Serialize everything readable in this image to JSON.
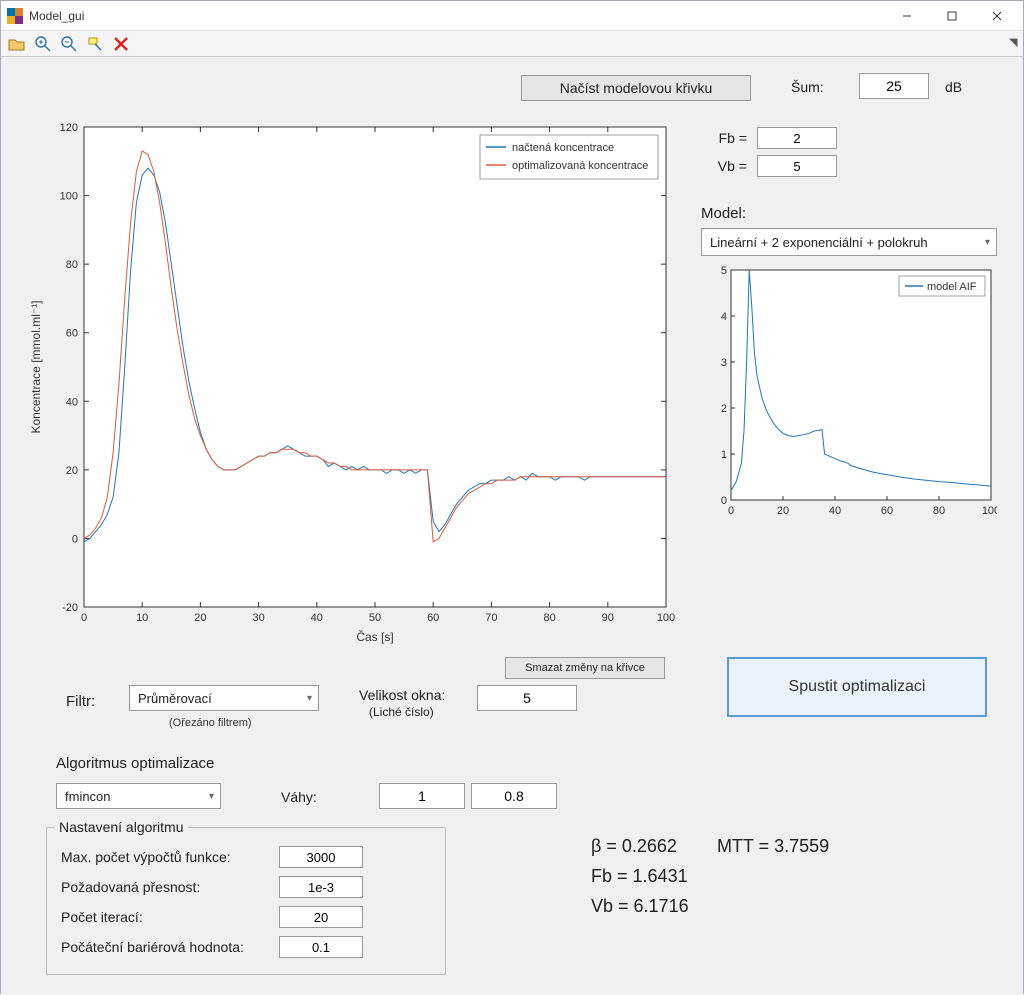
{
  "window": {
    "title": "Model_gui"
  },
  "toolbar": {
    "load_curve_label": "Načíst modelovou křivku",
    "noise_label": "Šum:",
    "noise_value": "25",
    "noise_unit": "dB"
  },
  "params": {
    "fb_label": "Fb =",
    "fb_value": "2",
    "vb_label": "Vb =",
    "vb_value": "5"
  },
  "model": {
    "label": "Model:",
    "selected": "Lineární + 2 exponenciální + polokruh"
  },
  "main_chart": {
    "type": "line",
    "xlabel": "Čas [s]",
    "ylabel": "Koncentrace [mmol.ml⁻¹]",
    "xlim": [
      0,
      100
    ],
    "ylim": [
      -20,
      120
    ],
    "xticks": [
      0,
      10,
      20,
      30,
      40,
      50,
      60,
      70,
      80,
      90,
      100
    ],
    "yticks": [
      -20,
      0,
      20,
      40,
      60,
      80,
      100,
      120
    ],
    "background_color": "#ffffff",
    "axis_color": "#333333",
    "box": true,
    "legend": {
      "items": [
        "načtená koncentrace",
        "optimalizovaná koncentrace"
      ],
      "colors": [
        "#1f77b4",
        "#d85a3a"
      ],
      "position": "top-right"
    },
    "series": [
      {
        "name": "načtená koncentrace",
        "color": "#1f77b4",
        "line_width": 1.0,
        "x": [
          0,
          1,
          2,
          3,
          4,
          5,
          6,
          7,
          8,
          9,
          10,
          11,
          12,
          13,
          14,
          15,
          16,
          17,
          18,
          19,
          20,
          21,
          22,
          23,
          24,
          25,
          26,
          27,
          28,
          29,
          30,
          31,
          32,
          33,
          34,
          35,
          36,
          37,
          38,
          39,
          40,
          41,
          42,
          43,
          44,
          45,
          46,
          47,
          48,
          49,
          50,
          51,
          52,
          53,
          54,
          55,
          56,
          57,
          58,
          59,
          60,
          61,
          62,
          63,
          64,
          65,
          66,
          67,
          68,
          69,
          70,
          71,
          72,
          73,
          74,
          75,
          76,
          77,
          78,
          79,
          80,
          81,
          82,
          83,
          84,
          85,
          86,
          87,
          88,
          89,
          90,
          91,
          92,
          93,
          94,
          95,
          96,
          97,
          98,
          99,
          100
        ],
        "y": [
          -1,
          0,
          2,
          4,
          7,
          12,
          25,
          50,
          78,
          98,
          106,
          108,
          106,
          101,
          92,
          80,
          68,
          56,
          46,
          38,
          31,
          26,
          23,
          21,
          20,
          20,
          20,
          21,
          22,
          23,
          24,
          24,
          25,
          25,
          26,
          27,
          26,
          25,
          24,
          24,
          24,
          23,
          21,
          22,
          21,
          20,
          21,
          20,
          21,
          20,
          20,
          20,
          19,
          20,
          20,
          19,
          20,
          19,
          20,
          20,
          5,
          2,
          4,
          7,
          10,
          12,
          14,
          15,
          16,
          16,
          17,
          17,
          17,
          18,
          17,
          18,
          17,
          19,
          18,
          18,
          18,
          17,
          18,
          18,
          18,
          18,
          17,
          18,
          18,
          18,
          18,
          18,
          18,
          18,
          18,
          18,
          18,
          18,
          18,
          18,
          18
        ]
      },
      {
        "name": "optimalizovaná koncentrace",
        "color": "#d85a3a",
        "line_width": 1.0,
        "x": [
          0,
          1,
          2,
          3,
          4,
          5,
          6,
          7,
          8,
          9,
          10,
          11,
          12,
          13,
          14,
          15,
          16,
          17,
          18,
          19,
          20,
          21,
          22,
          23,
          24,
          25,
          26,
          27,
          28,
          29,
          30,
          31,
          32,
          33,
          34,
          35,
          36,
          37,
          38,
          39,
          40,
          41,
          42,
          43,
          44,
          45,
          46,
          47,
          48,
          49,
          50,
          51,
          52,
          53,
          54,
          55,
          56,
          57,
          58,
          59,
          60,
          61,
          62,
          63,
          64,
          65,
          66,
          67,
          68,
          69,
          70,
          71,
          72,
          73,
          74,
          75,
          76,
          77,
          78,
          79,
          80,
          81,
          82,
          83,
          84,
          85,
          86,
          87,
          88,
          89,
          90,
          91,
          92,
          93,
          94,
          95,
          96,
          97,
          98,
          99,
          100
        ],
        "y": [
          0,
          1,
          3,
          6,
          12,
          25,
          45,
          70,
          92,
          107,
          113,
          112,
          107,
          98,
          86,
          73,
          61,
          51,
          42,
          35,
          30,
          26,
          23,
          21,
          20,
          20,
          20,
          21,
          22,
          23,
          24,
          24,
          25,
          25,
          26,
          26,
          26,
          25,
          25,
          24,
          24,
          23,
          22,
          22,
          21,
          21,
          20,
          20,
          20,
          20,
          20,
          20,
          20,
          20,
          20,
          20,
          20,
          20,
          20,
          20,
          -1,
          0,
          3,
          6,
          9,
          11,
          13,
          14,
          15,
          16,
          16,
          17,
          17,
          17,
          17,
          18,
          18,
          18,
          18,
          18,
          18,
          18,
          18,
          18,
          18,
          18,
          18,
          18,
          18,
          18,
          18,
          18,
          18,
          18,
          18,
          18,
          18,
          18,
          18,
          18,
          18
        ]
      }
    ]
  },
  "small_chart": {
    "type": "line",
    "legend": {
      "items": [
        "model AIF"
      ],
      "colors": [
        "#1f77b4"
      ],
      "position": "top-right"
    },
    "xlim": [
      0,
      100
    ],
    "ylim": [
      0,
      5
    ],
    "xticks": [
      0,
      20,
      40,
      60,
      80,
      100
    ],
    "yticks": [
      0,
      1,
      2,
      3,
      4,
      5
    ],
    "background_color": "#ffffff",
    "series": [
      {
        "name": "model AIF",
        "color": "#1f77b4",
        "line_width": 1.0,
        "x": [
          0,
          2,
          4,
          5,
          6,
          7,
          8,
          9,
          10,
          12,
          14,
          16,
          18,
          20,
          22,
          24,
          26,
          28,
          30,
          32,
          34,
          35,
          36,
          38,
          40,
          42,
          44,
          45,
          46,
          50,
          55,
          60,
          65,
          70,
          75,
          80,
          85,
          90,
          95,
          100
        ],
        "y": [
          0.2,
          0.4,
          0.8,
          1.5,
          3.0,
          5.0,
          4.2,
          3.2,
          2.7,
          2.2,
          1.9,
          1.7,
          1.55,
          1.45,
          1.4,
          1.38,
          1.4,
          1.42,
          1.45,
          1.5,
          1.52,
          1.53,
          1.0,
          0.95,
          0.9,
          0.85,
          0.82,
          0.8,
          0.75,
          0.68,
          0.6,
          0.55,
          0.5,
          0.46,
          0.43,
          0.4,
          0.38,
          0.35,
          0.33,
          0.3
        ]
      }
    ]
  },
  "clear_button": "Smazat změny na křivce",
  "filter": {
    "label": "Filtr:",
    "selected": "Průměrovací",
    "note": "(Ořezáno filtrem)",
    "window_label": "Velikost okna:",
    "window_sub": "(Liché číslo)",
    "window_value": "5"
  },
  "run_button": "Spustit optimalizaci",
  "algorithm": {
    "title": "Algoritmus optimalizace",
    "selected": "fmincon",
    "weights_label": "Váhy:",
    "weight1": "1",
    "weight2": "0.8",
    "settings_title": "Nastavení algoritmu",
    "max_eval_label": "Max. počet výpočtů funkce:",
    "max_eval_value": "3000",
    "tol_label": "Požadovaná přesnost:",
    "tol_value": "1e-3",
    "iter_label": "Počet iterací:",
    "iter_value": "20",
    "barrier_label": "Počáteční bariérová hodnota:",
    "barrier_value": "0.1"
  },
  "results": {
    "beta_label": "β = ",
    "beta_value": "0.2662",
    "mtt_label": "MTT = ",
    "mtt_value": "3.7559",
    "fb_label": "Fb = ",
    "fb_value": "1.6431",
    "vb_label": "Vb = ",
    "vb_value": "6.1716"
  }
}
